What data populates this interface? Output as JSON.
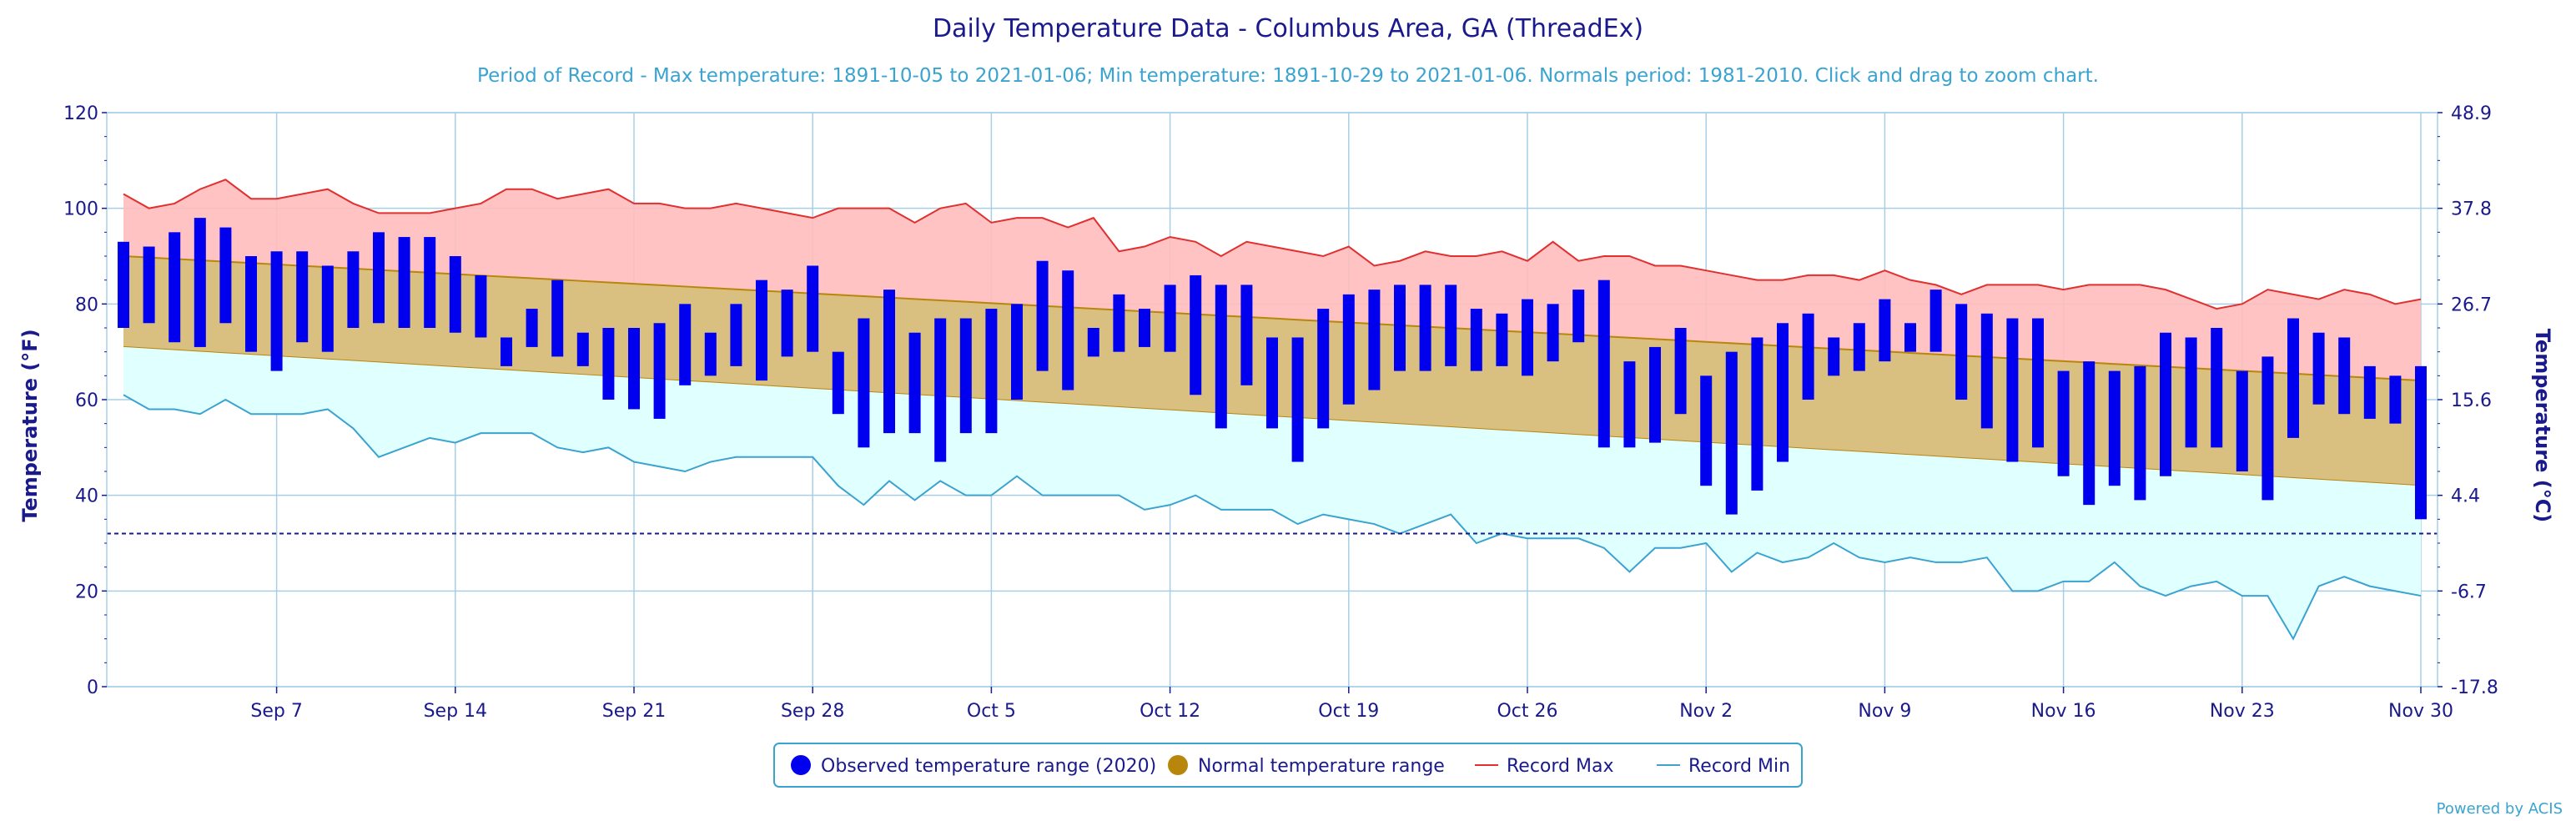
{
  "chart_data": {
    "type": "bar",
    "title": "Daily Temperature Data - Columbus Area, GA (ThreadEx)",
    "subtitle": "Period of Record - Max temperature: 1891-10-05 to 2021-01-06; Min temperature: 1891-10-29 to 2021-01-06. Normals period: 1981-2010. Click and drag to zoom chart.",
    "ylabel": "Temperature (°F)",
    "ylabel_right": "Temperature (°C)",
    "ylim": [
      0,
      120
    ],
    "y_ticks": [
      "0",
      "20",
      "40",
      "60",
      "80",
      "100",
      "120"
    ],
    "y_ticks_right": [
      "-17.8",
      "-6.7",
      "4.4",
      "15.6",
      "26.7",
      "37.8",
      "48.9"
    ],
    "x_ticks": [
      {
        "label": "Sep 7",
        "day": 6
      },
      {
        "label": "Sep 14",
        "day": 13
      },
      {
        "label": "Sep 21",
        "day": 20
      },
      {
        "label": "Sep 28",
        "day": 27
      },
      {
        "label": "Oct 5",
        "day": 34
      },
      {
        "label": "Oct 12",
        "day": 41
      },
      {
        "label": "Oct 19",
        "day": 48
      },
      {
        "label": "Oct 26",
        "day": 55
      },
      {
        "label": "Nov 2",
        "day": 62
      },
      {
        "label": "Nov 9",
        "day": 69
      },
      {
        "label": "Nov 16",
        "day": 76
      },
      {
        "label": "Nov 23",
        "day": 83
      },
      {
        "label": "Nov 30",
        "day": 90
      }
    ],
    "x_start": "Sep 1",
    "freezing_line": 32,
    "grid": true,
    "legend_position": "bottom-center",
    "colors": {
      "observed": "#0000ee",
      "normal_fill": "#d9bf80",
      "normal_edge": "#b8860b",
      "record_max_line": "#e03030",
      "record_max_fill": "#ffbcbc",
      "record_min_line": "#3ba3d0",
      "record_min_fill": "#e0ffff",
      "freezing": "#1a1a8c"
    },
    "legend": [
      {
        "label": "Observed temperature range (2020)",
        "color": "#0000ee",
        "symbol": "circle"
      },
      {
        "label": "Normal temperature range",
        "color": "#b8860b",
        "symbol": "circle"
      },
      {
        "label": "Record Max",
        "color": "#e03030",
        "symbol": "line"
      },
      {
        "label": "Record Min",
        "color": "#3ba3d0",
        "symbol": "line"
      }
    ],
    "normal_max": {
      "start": 90,
      "end": 64
    },
    "normal_min": {
      "start": 71,
      "end": 42
    },
    "observed": [
      [
        75,
        93
      ],
      [
        76,
        92
      ],
      [
        72,
        95
      ],
      [
        71,
        98
      ],
      [
        76,
        96
      ],
      [
        70,
        90
      ],
      [
        66,
        91
      ],
      [
        72,
        91
      ],
      [
        70,
        88
      ],
      [
        75,
        91
      ],
      [
        76,
        95
      ],
      [
        75,
        94
      ],
      [
        75,
        94
      ],
      [
        74,
        90
      ],
      [
        73,
        86
      ],
      [
        67,
        73
      ],
      [
        71,
        79
      ],
      [
        69,
        85
      ],
      [
        67,
        74
      ],
      [
        60,
        75
      ],
      [
        58,
        75
      ],
      [
        56,
        76
      ],
      [
        63,
        80
      ],
      [
        65,
        74
      ],
      [
        67,
        80
      ],
      [
        64,
        85
      ],
      [
        69,
        83
      ],
      [
        70,
        88
      ],
      [
        57,
        70
      ],
      [
        50,
        77
      ],
      [
        53,
        83
      ],
      [
        53,
        74
      ],
      [
        47,
        77
      ],
      [
        53,
        77
      ],
      [
        53,
        79
      ],
      [
        60,
        80
      ],
      [
        66,
        89
      ],
      [
        62,
        87
      ],
      [
        69,
        75
      ],
      [
        70,
        82
      ],
      [
        71,
        79
      ],
      [
        70,
        84
      ],
      [
        61,
        86
      ],
      [
        54,
        84
      ],
      [
        63,
        84
      ],
      [
        54,
        73
      ],
      [
        47,
        73
      ],
      [
        54,
        79
      ],
      [
        59,
        82
      ],
      [
        62,
        83
      ],
      [
        66,
        84
      ],
      [
        66,
        84
      ],
      [
        67,
        84
      ],
      [
        66,
        79
      ],
      [
        67,
        78
      ],
      [
        65,
        81
      ],
      [
        68,
        80
      ],
      [
        72,
        83
      ],
      [
        50,
        85
      ],
      [
        50,
        68
      ],
      [
        51,
        71
      ],
      [
        57,
        75
      ],
      [
        42,
        65
      ],
      [
        36,
        70
      ],
      [
        41,
        73
      ],
      [
        47,
        76
      ],
      [
        60,
        78
      ],
      [
        65,
        73
      ],
      [
        66,
        76
      ],
      [
        68,
        81
      ],
      [
        70,
        76
      ],
      [
        70,
        83
      ],
      [
        60,
        80
      ],
      [
        54,
        78
      ],
      [
        47,
        77
      ],
      [
        50,
        77
      ],
      [
        44,
        66
      ],
      [
        38,
        68
      ],
      [
        42,
        66
      ],
      [
        39,
        67
      ],
      [
        44,
        74
      ],
      [
        50,
        73
      ],
      [
        50,
        75
      ],
      [
        45,
        66
      ],
      [
        39,
        69
      ],
      [
        52,
        77
      ],
      [
        59,
        74
      ],
      [
        57,
        73
      ],
      [
        56,
        67
      ],
      [
        55,
        65
      ],
      [
        35,
        67
      ]
    ],
    "record_max": [
      103,
      100,
      101,
      104,
      106,
      102,
      102,
      103,
      104,
      101,
      99,
      99,
      99,
      100,
      101,
      104,
      104,
      102,
      103,
      104,
      101,
      101,
      100,
      100,
      101,
      100,
      99,
      98,
      100,
      100,
      100,
      97,
      100,
      101,
      97,
      98,
      98,
      96,
      98,
      91,
      92,
      94,
      93,
      90,
      93,
      92,
      91,
      90,
      92,
      88,
      89,
      91,
      90,
      90,
      91,
      89,
      93,
      89,
      90,
      90,
      88,
      88,
      87,
      86,
      85,
      85,
      86,
      86,
      85,
      87,
      85,
      84,
      82,
      84,
      84,
      84,
      83,
      84,
      84,
      84,
      83,
      81,
      79,
      80,
      83,
      82,
      81,
      83,
      82,
      80,
      81
    ],
    "record_min": [
      61,
      58,
      58,
      57,
      60,
      57,
      57,
      57,
      58,
      54,
      48,
      50,
      52,
      51,
      53,
      53,
      53,
      50,
      49,
      50,
      47,
      46,
      45,
      47,
      48,
      48,
      48,
      48,
      42,
      38,
      43,
      39,
      43,
      40,
      40,
      44,
      40,
      40,
      40,
      40,
      37,
      38,
      40,
      37,
      37,
      37,
      34,
      36,
      35,
      34,
      32,
      34,
      36,
      30,
      32,
      31,
      31,
      31,
      29,
      24,
      29,
      29,
      30,
      24,
      28,
      26,
      27,
      30,
      27,
      26,
      27,
      26,
      26,
      27,
      20,
      20,
      22,
      22,
      26,
      21,
      19,
      21,
      22,
      19,
      19,
      10,
      21,
      23,
      21,
      20,
      19
    ],
    "credits": "Powered by ACIS"
  }
}
